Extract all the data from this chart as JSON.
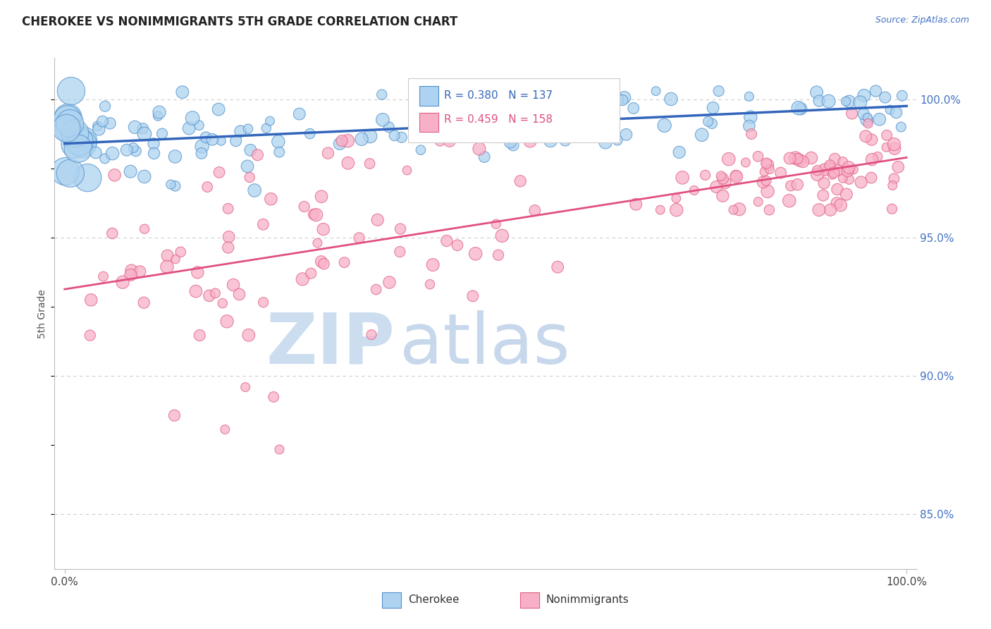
{
  "title": "CHEROKEE VS NONIMMIGRANTS 5TH GRADE CORRELATION CHART",
  "source": "Source: ZipAtlas.com",
  "ylabel": "5th Grade",
  "legend_cherokee": "Cherokee",
  "legend_nonimmigrants": "Nonimmigrants",
  "cherokee_R": 0.38,
  "cherokee_N": 137,
  "nonimmigrant_R": 0.459,
  "nonimmigrant_N": 158,
  "cherokee_color": "#aed3f0",
  "cherokee_edge_color": "#5090cc",
  "cherokee_line_color": "#3366bb",
  "nonimmigrant_color": "#f8b0c8",
  "nonimmigrant_edge_color": "#e06080",
  "nonimmigrant_line_color": "#e05080",
  "background_color": "#ffffff",
  "grid_color": "#cccccc",
  "right_axis_color": "#4472c4",
  "watermark_zip_color": "#ccddf0",
  "watermark_atlas_color": "#c8d8ec",
  "ylim_min": 0.83,
  "ylim_max": 1.015,
  "seed": 7
}
